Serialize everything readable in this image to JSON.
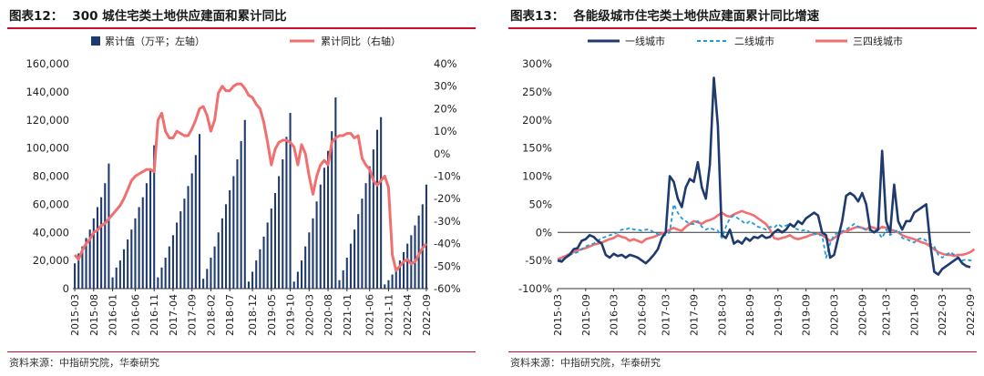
{
  "panels": [
    {
      "label": "图表12：",
      "title": "300 城住宅类土地供应建面和累计同比",
      "source": "资料来源：中指研究院，华泰研究"
    },
    {
      "label": "图表13：",
      "title": "各能级城市住宅类土地供应建面累计同比增速",
      "source": "资料来源：中指研究院，华泰研究"
    }
  ],
  "colors": {
    "navy": "#1f3a6e",
    "salmon": "#f07070",
    "lightblue": "#1e9bdc",
    "rule": "#c8102e"
  },
  "chart_data": [
    {
      "type": "bar",
      "title": "300 城住宅类土地供应建面和累计同比",
      "xlabel": "",
      "ylabel": "",
      "ylim": [
        0,
        160000
      ],
      "ylim_right": [
        -60,
        40
      ],
      "y_ticks": [
        "0",
        "20,000",
        "40,000",
        "60,000",
        "80,000",
        "100,000",
        "120,000",
        "140,000",
        "160,000"
      ],
      "y2_ticks": [
        "-60%",
        "-50%",
        "-40%",
        "-30%",
        "-20%",
        "-10%",
        "0%",
        "10%",
        "20%",
        "30%",
        "40%"
      ],
      "x_ticks": [
        "2015-03",
        "2015-08",
        "2016-01",
        "2016-06",
        "2016-11",
        "2017-04",
        "2017-09",
        "2018-02",
        "2018-07",
        "2018-12",
        "2019-05",
        "2019-10",
        "2020-03",
        "2020-08",
        "2021-01",
        "2021-06",
        "2021-11",
        "2022-04",
        "2022-09"
      ],
      "legend_position": "top",
      "series": [
        {
          "name": "累计值（万平；左轴）",
          "kind": "bar",
          "axis": "left",
          "values": [
            18000,
            25000,
            30000,
            36000,
            42000,
            50000,
            58000,
            65000,
            75000,
            89000,
            8000,
            15000,
            20000,
            28000,
            35000,
            42000,
            50000,
            58000,
            65000,
            75000,
            85000,
            102000,
            8000,
            15000,
            22000,
            30000,
            38000,
            47000,
            55000,
            64000,
            73000,
            82000,
            95000,
            110000,
            7000,
            14000,
            22000,
            30000,
            40000,
            50000,
            60000,
            70000,
            80000,
            92000,
            105000,
            120000,
            5000,
            12000,
            20000,
            28000,
            37000,
            47000,
            57000,
            68000,
            80000,
            92000,
            108000,
            125000,
            5000,
            12000,
            20000,
            30000,
            40000,
            50000,
            62000,
            74000,
            86000,
            98000,
            112000,
            136000,
            6000,
            13000,
            22000,
            32000,
            42000,
            53000,
            64000,
            75000,
            87000,
            99000,
            113000,
            122000,
            3000,
            6000,
            10000,
            15000,
            20000,
            26000,
            32000,
            38000,
            45000,
            52000,
            60000,
            74000
          ]
        },
        {
          "name": "累计同比（右轴）",
          "kind": "line",
          "axis": "right",
          "values": [
            -45,
            -47,
            -43,
            -40,
            -38,
            -35,
            -34,
            -32,
            -31,
            -29,
            -27,
            -25,
            -23,
            -20,
            -16,
            -12,
            -10,
            -9,
            -8,
            -7,
            -7,
            -8,
            15,
            18,
            10,
            7,
            7,
            10,
            9,
            8,
            8,
            11,
            15,
            20,
            21,
            17,
            10,
            15,
            27,
            30,
            28,
            28,
            30,
            31,
            31,
            29,
            26,
            25,
            22,
            20,
            14,
            5,
            -5,
            2,
            5,
            6,
            6,
            5,
            3,
            -5,
            4,
            0,
            -10,
            -18,
            -10,
            -5,
            -3,
            -5,
            5,
            7,
            8,
            8,
            9,
            9,
            7,
            8,
            -2,
            -5,
            -7,
            -12,
            -14,
            -12,
            -10,
            -15,
            -45,
            -52,
            -50,
            -48,
            -47,
            -49,
            -48,
            -45,
            -42,
            -40
          ]
        }
      ]
    },
    {
      "type": "line",
      "title": "各能级城市住宅类土地供应建面累计同比增速",
      "xlabel": "",
      "ylabel": "",
      "ylim": [
        -100,
        300
      ],
      "y_ticks": [
        "-100%",
        "-50%",
        "0%",
        "50%",
        "100%",
        "150%",
        "200%",
        "250%",
        "300%"
      ],
      "x_ticks": [
        "2015-03",
        "2015-09",
        "2016-03",
        "2016-09",
        "2017-03",
        "2017-09",
        "2018-03",
        "2018-09",
        "2019-03",
        "2019-09",
        "2020-03",
        "2020-09",
        "2021-03",
        "2021-09",
        "2022-03",
        "2022-09"
      ],
      "legend_position": "top",
      "series": [
        {
          "name": "一线城市",
          "style": "solid-navy",
          "values": [
            -50,
            -52,
            -45,
            -40,
            -30,
            -28,
            -15,
            -12,
            -5,
            -8,
            -15,
            -20,
            -40,
            -45,
            -38,
            -42,
            -40,
            -45,
            -40,
            -42,
            -45,
            -50,
            -55,
            -48,
            -40,
            -30,
            -10,
            0,
            100,
            90,
            60,
            45,
            80,
            95,
            90,
            125,
            80,
            60,
            120,
            275,
            190,
            -5,
            -10,
            5,
            -20,
            -15,
            -20,
            -10,
            -15,
            -8,
            -10,
            -5,
            -10,
            -8,
            0,
            5,
            0,
            5,
            15,
            10,
            20,
            15,
            25,
            30,
            35,
            30,
            0,
            -5,
            -45,
            -40,
            -10,
            20,
            65,
            70,
            65,
            55,
            70,
            50,
            5,
            0,
            5,
            145,
            20,
            0,
            85,
            20,
            5,
            20,
            20,
            35,
            40,
            45,
            50,
            -20,
            -70,
            -75,
            -65,
            -60,
            -55,
            -50,
            -45,
            -55,
            -60,
            -62
          ]
        },
        {
          "name": "二线城市",
          "style": "dashed-lightblue",
          "values": [
            -50,
            -48,
            -45,
            -40,
            -38,
            -35,
            -30,
            -25,
            -22,
            -20,
            -15,
            -10,
            -8,
            -5,
            -3,
            0,
            5,
            5,
            8,
            5,
            5,
            3,
            5,
            5,
            0,
            -3,
            -5,
            -5,
            0,
            50,
            35,
            25,
            20,
            15,
            15,
            20,
            10,
            5,
            8,
            5,
            3,
            -10,
            10,
            25,
            30,
            25,
            20,
            15,
            20,
            15,
            10,
            8,
            5,
            10,
            8,
            15,
            10,
            12,
            15,
            8,
            5,
            3,
            5,
            0,
            -2,
            -5,
            -5,
            -45,
            -20,
            -5,
            0,
            2,
            5,
            10,
            15,
            10,
            8,
            5,
            3,
            5,
            0,
            -10,
            5,
            -5,
            0,
            5,
            -10,
            -12,
            -15,
            -18,
            -12,
            -10,
            -15,
            -20,
            -25,
            -40,
            -45,
            -40,
            -35,
            -40,
            -45,
            -50,
            -48,
            -50,
            -50
          ]
        },
        {
          "name": "三四线城市",
          "style": "solid-salmon",
          "values": [
            -48,
            -45,
            -42,
            -38,
            -35,
            -32,
            -30,
            -28,
            -25,
            -22,
            -20,
            -18,
            -15,
            -12,
            -10,
            -5,
            -8,
            -10,
            -15,
            -12,
            -15,
            -18,
            -12,
            -10,
            -8,
            -5,
            -2,
            0,
            5,
            8,
            5,
            3,
            10,
            15,
            20,
            18,
            15,
            20,
            22,
            25,
            30,
            35,
            30,
            28,
            32,
            35,
            38,
            35,
            33,
            30,
            25,
            20,
            15,
            5,
            -10,
            -12,
            -10,
            -8,
            -5,
            -10,
            -12,
            -10,
            -8,
            -5,
            -3,
            -2,
            -5,
            -10,
            -15,
            -10,
            -5,
            0,
            2,
            5,
            8,
            10,
            8,
            5,
            10,
            8,
            5,
            10,
            8,
            5,
            3,
            0,
            -5,
            -8,
            -10,
            -12,
            -15,
            -18,
            -20,
            -25,
            -30,
            -35,
            -38,
            -40,
            -40,
            -42,
            -40,
            -40,
            -38,
            -35,
            -30
          ]
        }
      ]
    }
  ]
}
